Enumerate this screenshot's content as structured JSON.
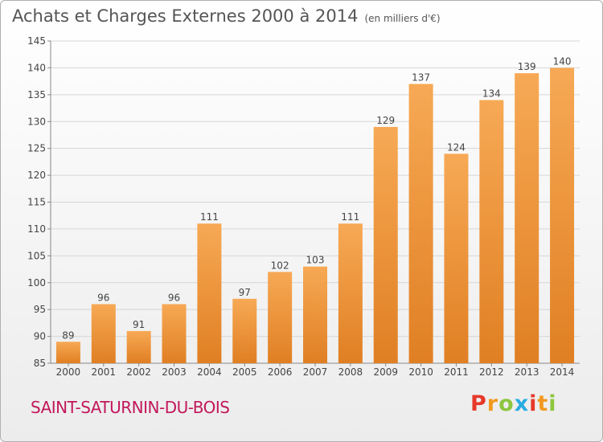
{
  "header": {
    "title": "Achats et Charges Externes 2000 à 2014",
    "unit": "(en milliers d'€)"
  },
  "footer": {
    "town": "SAINT-SATURNIN-DU-BOIS",
    "logo": "Proxiti"
  },
  "colors": {
    "bar_light": "#f7a955",
    "bar_dark": "#e07f23",
    "logo_letters": [
      "#e6392b",
      "#f29a1f",
      "#8dc63f",
      "#29abe2",
      "#e6392b",
      "#f29a1f",
      "#8dc63f"
    ]
  },
  "chart_data": {
    "type": "bar",
    "title": "Achats et Charges Externes 2000 à 2014",
    "xlabel": "",
    "ylabel": "",
    "categories": [
      "2000",
      "2001",
      "2002",
      "2003",
      "2004",
      "2005",
      "2006",
      "2007",
      "2008",
      "2009",
      "2010",
      "2011",
      "2012",
      "2013",
      "2014"
    ],
    "values": [
      89,
      96,
      91,
      96,
      111,
      97,
      102,
      103,
      111,
      129,
      137,
      124,
      134,
      139,
      140
    ],
    "ylim": [
      85,
      145
    ],
    "yticks": [
      85,
      90,
      95,
      100,
      105,
      110,
      115,
      120,
      125,
      130,
      135,
      140,
      145
    ],
    "grid": true,
    "legend": "none",
    "data_labels": true
  }
}
